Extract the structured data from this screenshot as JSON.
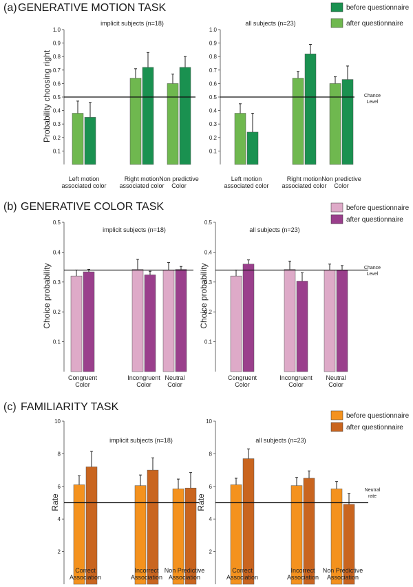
{
  "panels": [
    {
      "label": "(a)",
      "title": "GENERATIVE MOTION TASK",
      "legend": [
        {
          "name": "before questionnaire",
          "color": "#1a9150"
        },
        {
          "name": "after questionnaire",
          "color": "#6fb84f"
        }
      ],
      "reference_note": [
        "Chance",
        "Level"
      ],
      "ylabel_left": "Probability choosing right",
      "ylabel_right": ""
    },
    {
      "label": "(b)",
      "title": "GENERATIVE COLOR TASK",
      "legend": [
        {
          "name": "before questionnaire",
          "color": "#deaac8"
        },
        {
          "name": "after questionnaire",
          "color": "#9a3f8c"
        }
      ],
      "reference_note": [
        "Chance",
        "Level"
      ],
      "ylabel_left": "Choice probability",
      "ylabel_right": "Choice probability"
    },
    {
      "label": "(c)",
      "title": "FAMILIARITY TASK",
      "legend": [
        {
          "name": "before questionnaire",
          "color": "#f4921e"
        },
        {
          "name": "after questionnaire",
          "color": "#c9651f"
        }
      ],
      "reference_note": [
        "Neutral",
        "rate"
      ],
      "ylabel_left": "Rate",
      "ylabel_right": "Rate"
    }
  ],
  "chart_data": [
    {
      "type": "bar",
      "panel": "(a)",
      "title": "implicit subjects (n=18)",
      "categories": [
        [
          "Left motion",
          "associated color"
        ],
        [
          "Right motion",
          "associated color"
        ],
        [
          "Non predictive",
          "Color"
        ]
      ],
      "series": [
        {
          "name": "first bar",
          "color": "#6fb84f",
          "values": [
            0.38,
            0.64,
            0.6
          ],
          "errors": [
            0.09,
            0.07,
            0.07
          ]
        },
        {
          "name": "second bar",
          "color": "#1a9150",
          "values": [
            0.35,
            0.72,
            0.72
          ],
          "errors": [
            0.11,
            0.11,
            0.08
          ]
        }
      ],
      "ylim": [
        0,
        1.0
      ],
      "yticks": [
        0.1,
        0.2,
        0.3,
        0.4,
        0.5,
        0.6,
        0.7,
        0.8,
        0.9,
        1.0
      ],
      "ytick_labels": [
        "0.1",
        "0.2",
        "0.3",
        "0.4",
        "0.5",
        "0.6",
        "0.7",
        "0.8",
        "0.9",
        "1.0"
      ],
      "reference_line": 0.5,
      "ylabel": "Probability choosing right"
    },
    {
      "type": "bar",
      "panel": "(a)",
      "title": "all subjects (n=23)",
      "categories": [
        [
          "Left motion",
          "associated color"
        ],
        [
          "Right motion",
          "associated color"
        ],
        [
          "Non predictive",
          "Color"
        ]
      ],
      "series": [
        {
          "name": "first bar",
          "color": "#6fb84f",
          "values": [
            0.38,
            0.64,
            0.6
          ],
          "errors": [
            0.07,
            0.05,
            0.05
          ]
        },
        {
          "name": "second bar",
          "color": "#1a9150",
          "values": [
            0.24,
            0.82,
            0.63
          ],
          "errors": [
            0.14,
            0.07,
            0.1
          ]
        }
      ],
      "ylim": [
        0,
        1.0
      ],
      "yticks": [
        0.1,
        0.2,
        0.3,
        0.4,
        0.5,
        0.6,
        0.7,
        0.8,
        0.9,
        1.0
      ],
      "ytick_labels": [
        "0.1",
        "0.2",
        "0.3",
        "0.4",
        "0.5",
        "0.6",
        "0.7",
        "0.8",
        "0.9",
        "1.0"
      ],
      "reference_line": 0.5,
      "ylabel": ""
    },
    {
      "type": "bar",
      "panel": "(b)",
      "title": "implicit subjects (n=18)",
      "categories": [
        [
          "Congruent",
          "Color"
        ],
        [
          "Incongruent",
          "Color"
        ],
        [
          "Neutral",
          "Color"
        ]
      ],
      "series": [
        {
          "name": "first bar",
          "color": "#deaac8",
          "values": [
            0.32,
            0.342,
            0.34
          ],
          "errors": [
            0.02,
            0.034,
            0.025
          ]
        },
        {
          "name": "second bar",
          "color": "#9a3f8c",
          "values": [
            0.334,
            0.324,
            0.342
          ],
          "errors": [
            0.008,
            0.012,
            0.01
          ]
        }
      ],
      "ylim": [
        0,
        0.5
      ],
      "yticks": [
        0.1,
        0.2,
        0.3,
        0.4,
        0.5
      ],
      "ytick_labels": [
        "0.1",
        "0.2",
        "0.3",
        "0.4",
        "0.5"
      ],
      "reference_line": 0.34,
      "ylabel": "Choice probability"
    },
    {
      "type": "bar",
      "panel": "(b)",
      "title": "all subjects (n=23)",
      "categories": [
        [
          "Congruent",
          "Color"
        ],
        [
          "Incongruent",
          "Color"
        ],
        [
          "Neutral",
          "Color"
        ]
      ],
      "series": [
        {
          "name": "first bar",
          "color": "#deaac8",
          "values": [
            0.32,
            0.342,
            0.34
          ],
          "errors": [
            0.02,
            0.028,
            0.02
          ]
        },
        {
          "name": "second bar",
          "color": "#9a3f8c",
          "values": [
            0.36,
            0.303,
            0.34
          ],
          "errors": [
            0.014,
            0.028,
            0.015
          ]
        }
      ],
      "ylim": [
        0,
        0.5
      ],
      "yticks": [
        0.1,
        0.2,
        0.3,
        0.4,
        0.5
      ],
      "ytick_labels": [
        "0.1",
        "0.2",
        "0.3",
        "0.4",
        "0.5"
      ],
      "reference_line": 0.34,
      "ylabel": "Choice probability"
    },
    {
      "type": "bar",
      "panel": "(c)",
      "title": "implicit subjects (n=18)",
      "categories": [
        [
          "Correct",
          "Association"
        ],
        [
          "Incorrect",
          "Association"
        ],
        [
          "Non Predictive",
          "Association"
        ]
      ],
      "series": [
        {
          "name": "first bar",
          "color": "#f4921e",
          "values": [
            6.1,
            6.05,
            5.85
          ],
          "errors": [
            0.55,
            0.65,
            0.6
          ]
        },
        {
          "name": "second bar",
          "color": "#c9651f",
          "values": [
            7.2,
            7.0,
            5.9
          ],
          "errors": [
            0.95,
            0.75,
            0.95
          ]
        }
      ],
      "ylim": [
        0,
        10
      ],
      "yticks": [
        2,
        4,
        6,
        8,
        10
      ],
      "ytick_labels": [
        "2",
        "4",
        "6",
        "8",
        "10"
      ],
      "reference_line": 5,
      "ylabel": "Rate"
    },
    {
      "type": "bar",
      "panel": "(c)",
      "title": "all subjects (n=23)",
      "categories": [
        [
          "Correct",
          "Association"
        ],
        [
          "Incorrect",
          "Association"
        ],
        [
          "Non Predictive",
          "Association"
        ]
      ],
      "series": [
        {
          "name": "first bar",
          "color": "#f4921e",
          "values": [
            6.1,
            6.05,
            5.85
          ],
          "errors": [
            0.4,
            0.5,
            0.45
          ]
        },
        {
          "name": "second bar",
          "color": "#c9651f",
          "values": [
            7.7,
            6.5,
            4.9
          ],
          "errors": [
            0.6,
            0.45,
            0.65
          ]
        }
      ],
      "ylim": [
        0,
        10
      ],
      "yticks": [
        2,
        4,
        6,
        8,
        10
      ],
      "ytick_labels": [
        "2",
        "4",
        "6",
        "8",
        "10"
      ],
      "reference_line": 5,
      "ylabel": "Rate"
    }
  ]
}
